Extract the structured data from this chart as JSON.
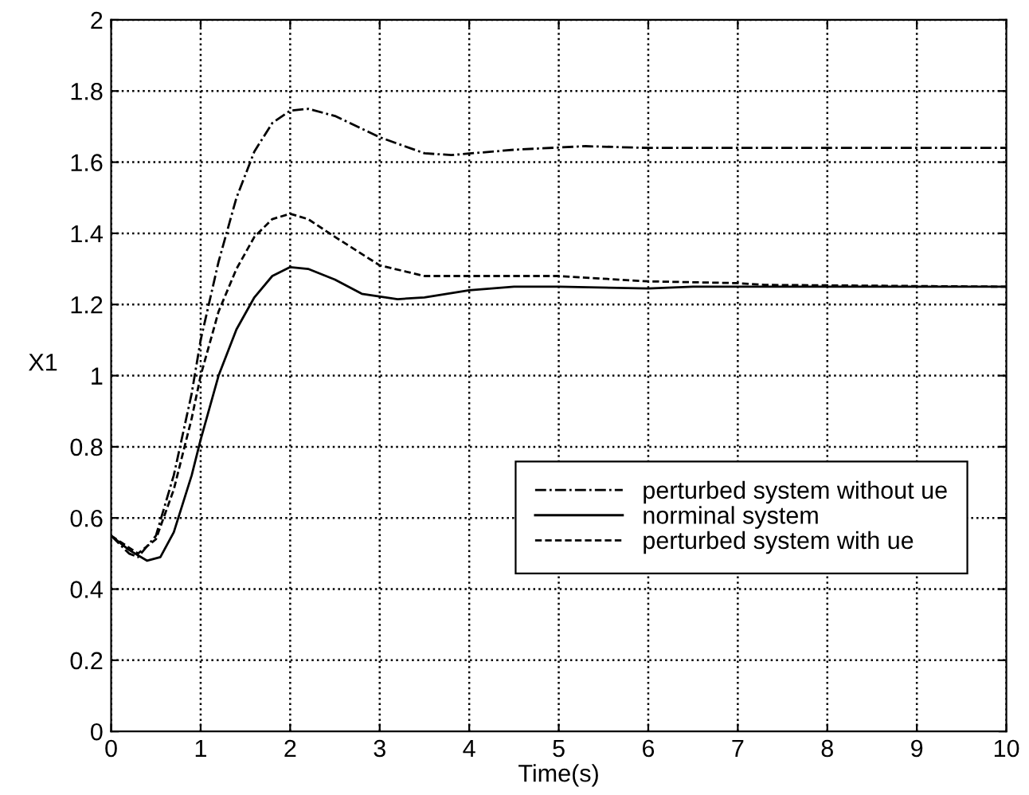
{
  "chart_data": {
    "type": "line",
    "xlabel": "Time(s)",
    "ylabel": "X1",
    "xlim": [
      0,
      10
    ],
    "xticks": [
      0,
      1,
      2,
      3,
      4,
      5,
      6,
      7,
      8,
      9,
      10
    ],
    "ylim": [
      0,
      2
    ],
    "yticks": [
      0,
      0.2,
      0.4,
      0.6,
      0.8,
      1,
      1.2,
      1.4,
      1.6,
      1.8,
      2
    ],
    "grid": true,
    "legend": "lower right",
    "marker": "none",
    "series": [
      {
        "name": "perturbed system without ue",
        "color": "#000000",
        "line_style": "dashdot",
        "x": [
          0,
          0.2,
          0.3,
          0.5,
          0.7,
          0.9,
          1.0,
          1.2,
          1.4,
          1.6,
          1.8,
          2.0,
          2.2,
          2.5,
          3.0,
          3.5,
          3.8,
          4.5,
          5.3,
          6,
          10
        ],
        "values": [
          0.55,
          0.5,
          0.49,
          0.55,
          0.72,
          0.95,
          1.1,
          1.32,
          1.5,
          1.63,
          1.71,
          1.745,
          1.75,
          1.73,
          1.67,
          1.625,
          1.62,
          1.635,
          1.645,
          1.64,
          1.64
        ]
      },
      {
        "name": "norminal system",
        "color": "#000000",
        "line_style": "solid",
        "x": [
          0,
          0.2,
          0.4,
          0.55,
          0.7,
          0.9,
          1.0,
          1.2,
          1.4,
          1.6,
          1.8,
          2.0,
          2.2,
          2.5,
          2.8,
          3.2,
          3.5,
          4,
          4.5,
          5,
          6,
          6.5,
          10
        ],
        "values": [
          0.55,
          0.51,
          0.48,
          0.49,
          0.56,
          0.72,
          0.82,
          1.0,
          1.13,
          1.22,
          1.28,
          1.305,
          1.3,
          1.27,
          1.23,
          1.215,
          1.22,
          1.24,
          1.25,
          1.25,
          1.245,
          1.25,
          1.25
        ]
      },
      {
        "name": "perturbed system with ue",
        "color": "#000000",
        "line_style": "dashed",
        "x": [
          0,
          0.3,
          0.5,
          0.7,
          0.9,
          1.0,
          1.2,
          1.4,
          1.6,
          1.8,
          2.0,
          2.2,
          2.5,
          3.0,
          3.5,
          4,
          5,
          6,
          7,
          7.3,
          10
        ],
        "values": [
          0.55,
          0.5,
          0.54,
          0.68,
          0.88,
          1.0,
          1.18,
          1.3,
          1.39,
          1.44,
          1.455,
          1.44,
          1.39,
          1.31,
          1.28,
          1.28,
          1.28,
          1.265,
          1.26,
          1.255,
          1.25
        ]
      }
    ]
  }
}
